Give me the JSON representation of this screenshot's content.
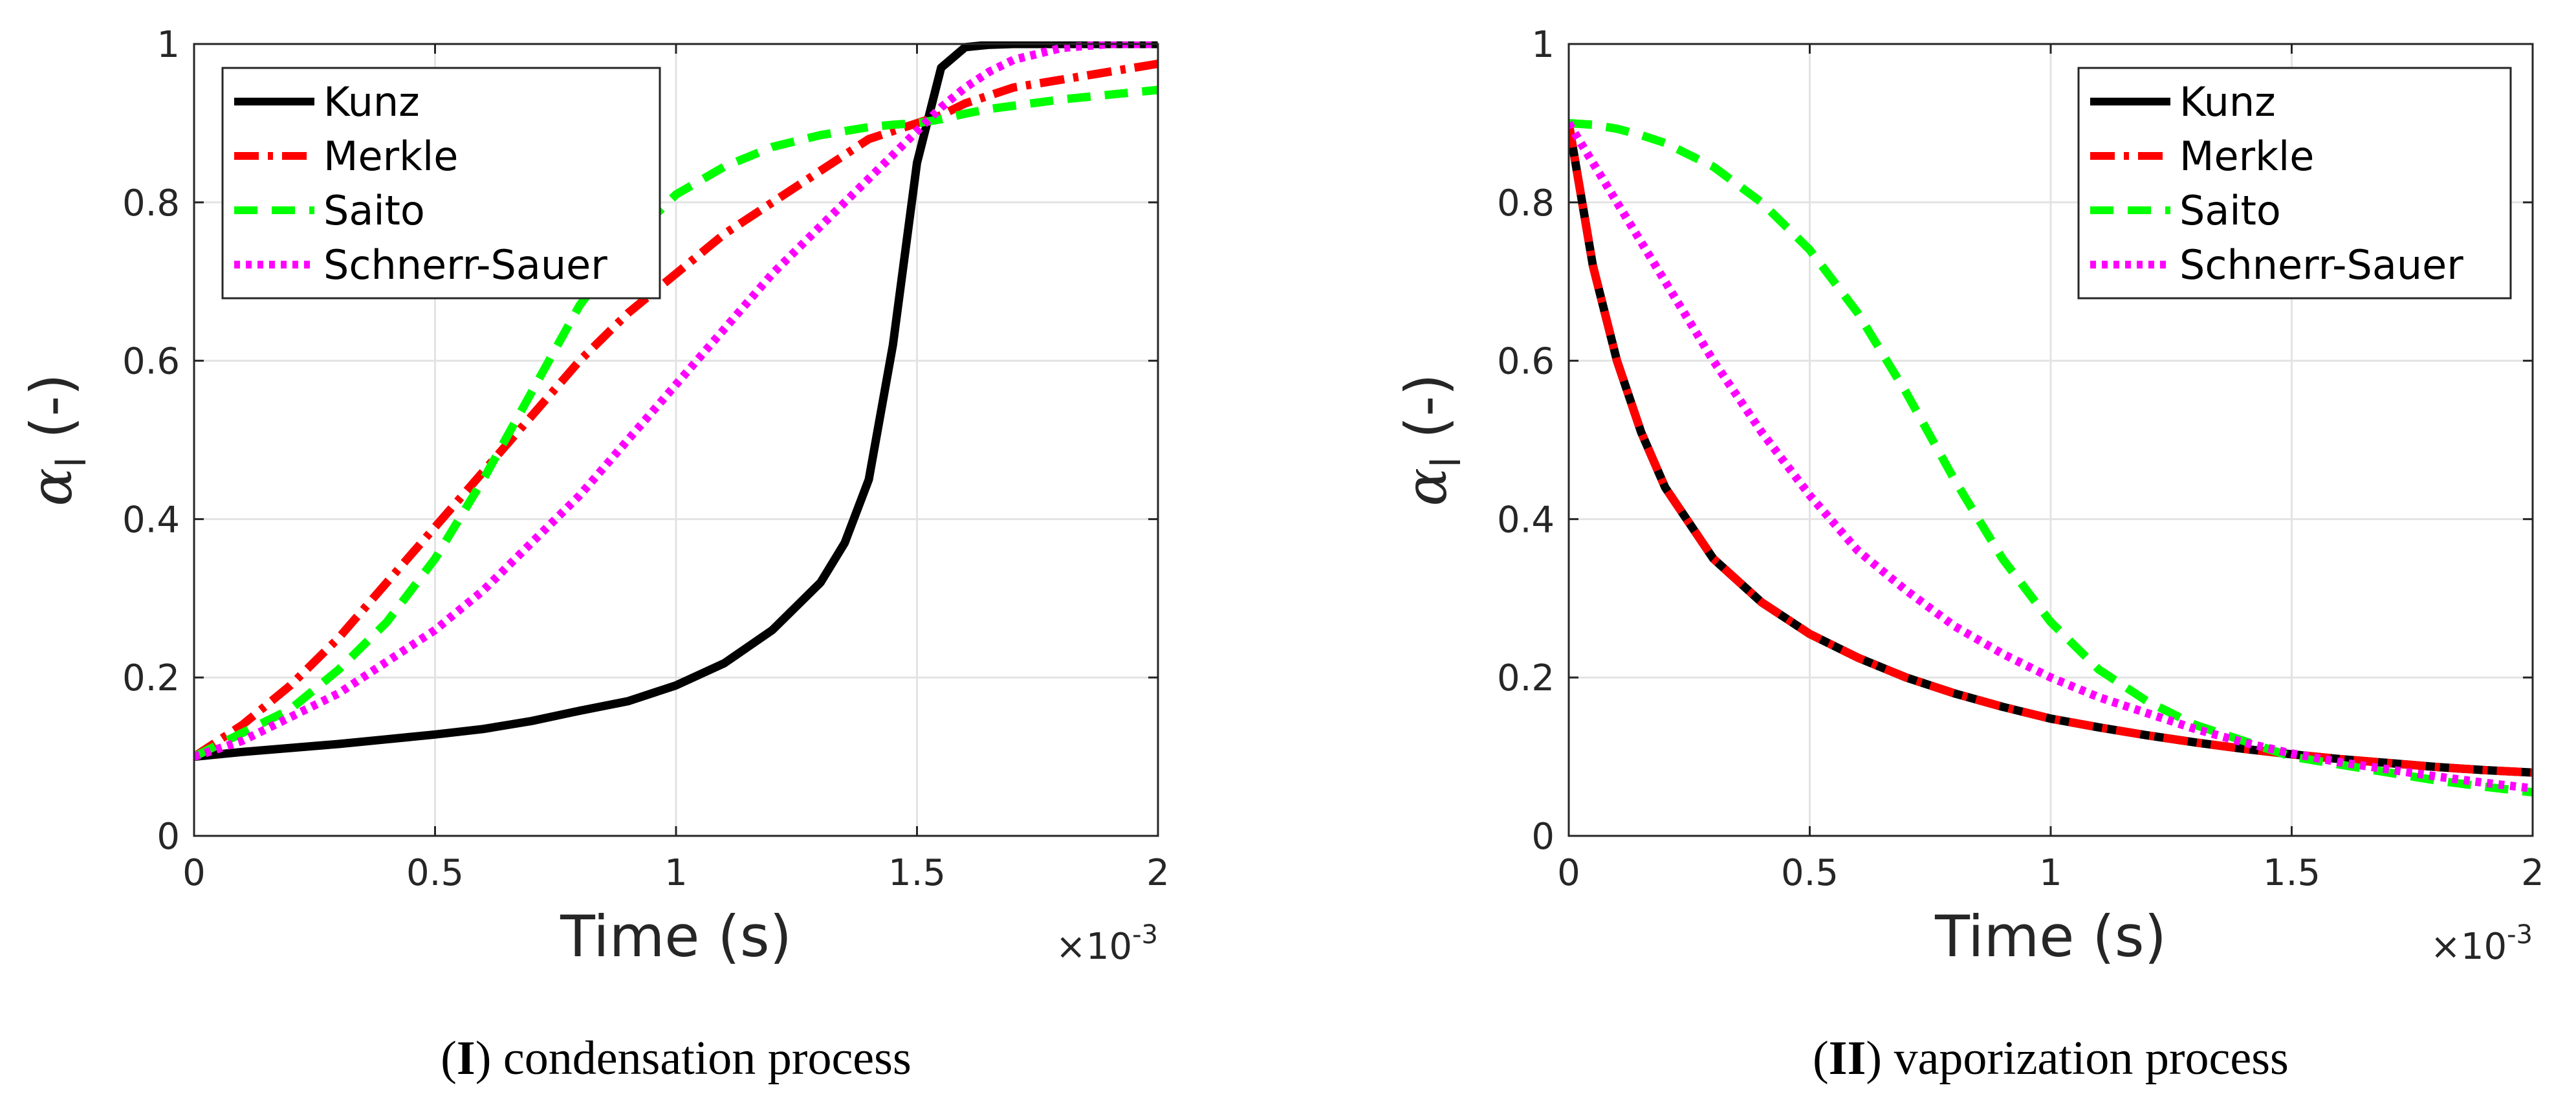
{
  "chart_data": [
    {
      "type": "line",
      "caption": {
        "prefix": "(",
        "number": "I",
        "suffix": ")",
        "text": " condensation process"
      },
      "xlabel": "Time (s)",
      "ylabel": {
        "symbol": "α",
        "subscript": "l",
        "unit": "(-)"
      },
      "x_multiplier": {
        "base": "×10",
        "exponent": "-3"
      },
      "xlim": [
        0,
        2
      ],
      "ylim": [
        0,
        1
      ],
      "xticks": [
        0,
        0.5,
        1,
        1.5,
        2
      ],
      "xtick_labels": [
        "0",
        "0.5",
        "1",
        "1.5",
        "2"
      ],
      "yticks": [
        0,
        0.2,
        0.4,
        0.6,
        0.8,
        1
      ],
      "ytick_labels": [
        "0",
        "0.2",
        "0.4",
        "0.6",
        "0.8",
        "1"
      ],
      "grid": true,
      "legend_position": "top-left",
      "x": [
        0,
        0.1,
        0.2,
        0.3,
        0.4,
        0.5,
        0.6,
        0.7,
        0.8,
        0.9,
        1.0,
        1.1,
        1.2,
        1.3,
        1.35,
        1.4,
        1.45,
        1.5,
        1.55,
        1.6,
        1.65,
        1.7,
        1.8,
        1.9,
        2.0
      ],
      "series": [
        {
          "name": "Kunz",
          "color": "#000000",
          "dash": "solid",
          "values": [
            0.1,
            0.106,
            0.111,
            0.116,
            0.122,
            0.128,
            0.135,
            0.145,
            0.158,
            0.17,
            0.19,
            0.218,
            0.26,
            0.32,
            0.37,
            0.45,
            0.62,
            0.85,
            0.97,
            0.996,
            0.999,
            1.0,
            1.0,
            1.0,
            1.0
          ]
        },
        {
          "name": "Merkle",
          "color": "#ff0000",
          "dash": "dashdot",
          "values": [
            0.1,
            0.14,
            0.19,
            0.25,
            0.32,
            0.39,
            0.46,
            0.53,
            0.6,
            0.66,
            0.71,
            0.76,
            0.8,
            0.84,
            0.86,
            0.88,
            0.89,
            0.9,
            0.91,
            0.925,
            0.935,
            0.945,
            0.955,
            0.965,
            0.975
          ]
        },
        {
          "name": "Saito",
          "color": "#00ff00",
          "dash": "dashed",
          "values": [
            0.1,
            0.13,
            0.16,
            0.21,
            0.27,
            0.35,
            0.45,
            0.56,
            0.67,
            0.75,
            0.81,
            0.845,
            0.87,
            0.885,
            0.89,
            0.895,
            0.898,
            0.9,
            0.905,
            0.912,
            0.918,
            0.922,
            0.93,
            0.936,
            0.942
          ]
        },
        {
          "name": "Schnerr-Sauer",
          "color": "#ff00ff",
          "dash": "dotted",
          "values": [
            0.1,
            0.12,
            0.15,
            0.18,
            0.22,
            0.26,
            0.31,
            0.37,
            0.43,
            0.5,
            0.57,
            0.64,
            0.71,
            0.77,
            0.8,
            0.83,
            0.86,
            0.89,
            0.92,
            0.945,
            0.965,
            0.98,
            0.995,
            1.0,
            1.0
          ]
        }
      ]
    },
    {
      "type": "line",
      "caption": {
        "prefix": "(",
        "number": "II",
        "suffix": ")",
        "text": " vaporization process"
      },
      "xlabel": "Time (s)",
      "ylabel": {
        "symbol": "α",
        "subscript": "l",
        "unit": "(-)"
      },
      "x_multiplier": {
        "base": "×10",
        "exponent": "-3"
      },
      "xlim": [
        0,
        2
      ],
      "ylim": [
        0,
        1
      ],
      "xticks": [
        0,
        0.5,
        1,
        1.5,
        2
      ],
      "xtick_labels": [
        "0",
        "0.5",
        "1",
        "1.5",
        "2"
      ],
      "yticks": [
        0,
        0.2,
        0.4,
        0.6,
        0.8,
        1
      ],
      "ytick_labels": [
        "0",
        "0.2",
        "0.4",
        "0.6",
        "0.8",
        "1"
      ],
      "grid": true,
      "legend_position": "top-right",
      "x": [
        0,
        0.05,
        0.1,
        0.15,
        0.2,
        0.3,
        0.4,
        0.5,
        0.6,
        0.7,
        0.8,
        0.9,
        1.0,
        1.1,
        1.2,
        1.3,
        1.4,
        1.5,
        1.6,
        1.7,
        1.8,
        1.9,
        2.0
      ],
      "series": [
        {
          "name": "Kunz",
          "color": "#000000",
          "dash": "solid",
          "values": [
            0.9,
            0.72,
            0.6,
            0.51,
            0.44,
            0.35,
            0.295,
            0.255,
            0.225,
            0.2,
            0.18,
            0.163,
            0.148,
            0.137,
            0.127,
            0.118,
            0.11,
            0.103,
            0.097,
            0.092,
            0.087,
            0.083,
            0.08
          ]
        },
        {
          "name": "Merkle",
          "color": "#ff0000",
          "dash": "dashdot",
          "values": [
            0.9,
            0.72,
            0.6,
            0.51,
            0.44,
            0.35,
            0.295,
            0.255,
            0.225,
            0.2,
            0.18,
            0.163,
            0.148,
            0.137,
            0.127,
            0.118,
            0.11,
            0.103,
            0.097,
            0.092,
            0.087,
            0.083,
            0.08
          ]
        },
        {
          "name": "Saito",
          "color": "#00ff00",
          "dash": "dashed",
          "values": [
            0.9,
            0.898,
            0.893,
            0.885,
            0.875,
            0.845,
            0.8,
            0.74,
            0.66,
            0.56,
            0.45,
            0.35,
            0.27,
            0.21,
            0.17,
            0.14,
            0.12,
            0.1,
            0.09,
            0.08,
            0.07,
            0.062,
            0.055
          ]
        },
        {
          "name": "Schnerr-Sauer",
          "color": "#ff00ff",
          "dash": "dotted",
          "values": [
            0.9,
            0.85,
            0.8,
            0.75,
            0.7,
            0.6,
            0.51,
            0.43,
            0.36,
            0.31,
            0.265,
            0.23,
            0.2,
            0.175,
            0.155,
            0.135,
            0.118,
            0.104,
            0.093,
            0.084,
            0.075,
            0.067,
            0.06
          ]
        }
      ]
    }
  ]
}
